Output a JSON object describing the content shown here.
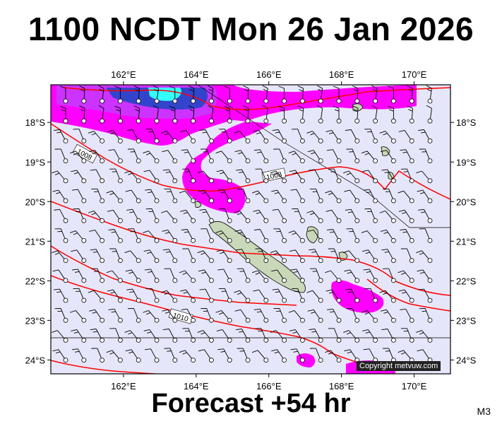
{
  "title": "1100 NCDT Mon 26 Jan 2026",
  "forecast_label": "Forecast +54 hr",
  "model_tag": "M3",
  "copyright": "Copyright metvuw.com",
  "colors": {
    "ocean": "#e6e6fa",
    "rain_light": "#ff00ff",
    "rain_medium": "#cc33ff",
    "rain_heavy": "#3344cc",
    "rain_extreme": "#33ffff",
    "isobar": "#ff0000",
    "land": "#c8d8b8",
    "border": "#000000"
  },
  "map": {
    "lon_ticks": [
      "162°E",
      "164°E",
      "166°E",
      "168°E",
      "170°E"
    ],
    "lat_ticks": [
      "18°S",
      "19°S",
      "20°S",
      "21°S",
      "22°S",
      "23°S",
      "24°S"
    ],
    "lon_values": [
      162,
      164,
      166,
      168,
      170
    ],
    "lat_values": [
      18,
      19,
      20,
      21,
      22,
      23,
      24
    ],
    "lon_range": [
      160,
      171
    ],
    "lat_range": [
      17.05,
      24.35
    ],
    "isobar_labels": [
      "1008",
      "1008",
      "1010"
    ]
  },
  "icons": {
    "wind_barb": "wind-barb-icon",
    "island": "island-shape"
  }
}
